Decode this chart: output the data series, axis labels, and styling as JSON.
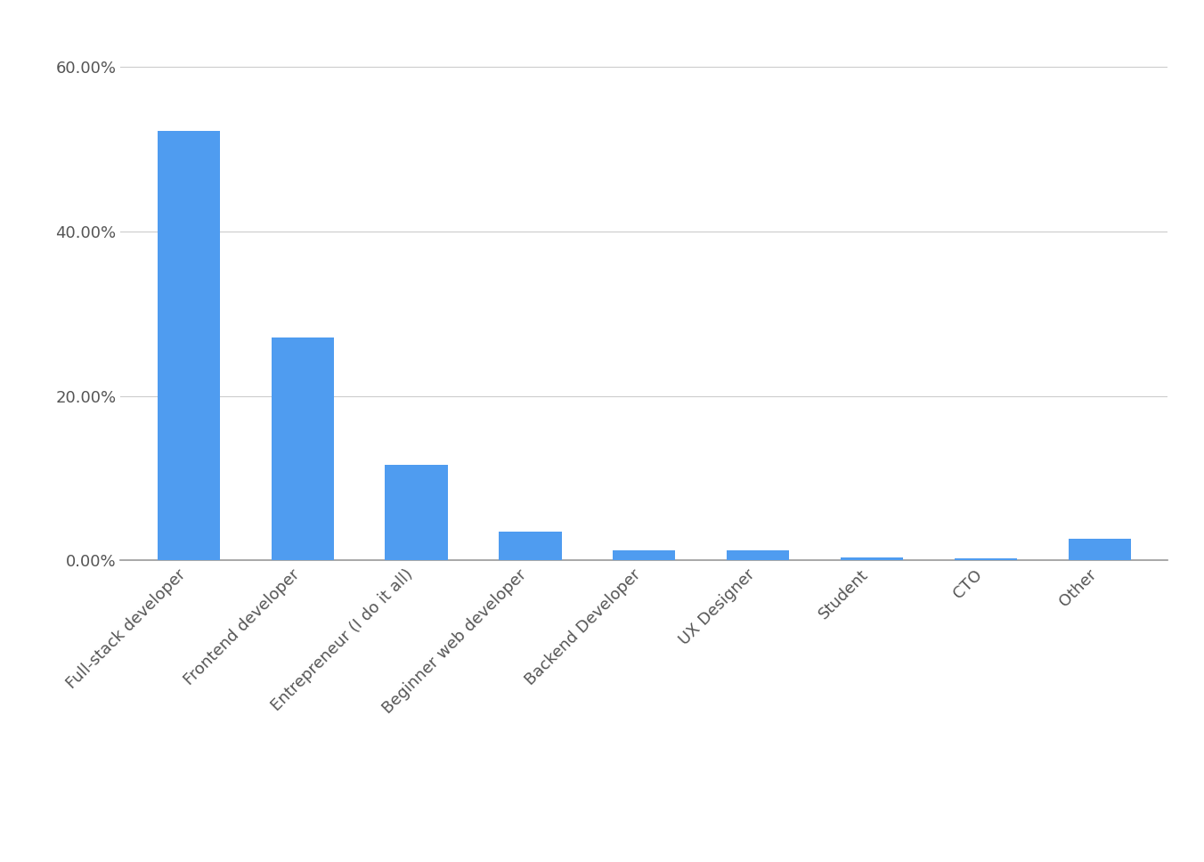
{
  "categories": [
    "Full-stack developer",
    "Frontend developer",
    "Entrepreneur (I do it all)",
    "Beginner web developer",
    "Backend Developer",
    "UX Designer",
    "Student",
    "CTO",
    "Other"
  ],
  "values": [
    52.18,
    27.11,
    11.65,
    3.47,
    1.23,
    1.16,
    0.34,
    0.2,
    2.66
  ],
  "bar_color": "#4f9cf0",
  "background_color": "#ffffff",
  "ylim_max": 65,
  "yticks": [
    0,
    20,
    40,
    60
  ],
  "ytick_labels": [
    "0.00%",
    "20.00%",
    "40.00%",
    "60.00%"
  ],
  "grid_color": "#cccccc",
  "tick_label_fontsize": 13,
  "xtick_fontsize": 13,
  "axis_label_color": "#555555",
  "bar_width": 0.55
}
